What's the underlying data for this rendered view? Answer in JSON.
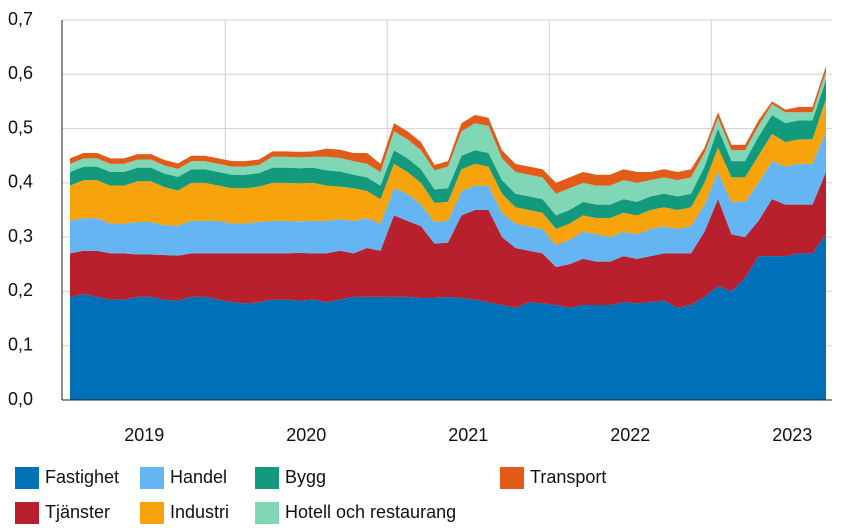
{
  "chart_data": {
    "type": "stacked-area",
    "categories": [
      null,
      null,
      null,
      null,
      null,
      null,
      "2019",
      null,
      null,
      null,
      null,
      null,
      null,
      null,
      null,
      null,
      null,
      null,
      "2020",
      null,
      null,
      null,
      null,
      null,
      null,
      null,
      null,
      null,
      null,
      null,
      "2021",
      null,
      null,
      null,
      null,
      null,
      null,
      null,
      null,
      null,
      null,
      null,
      "2022",
      null,
      null,
      null,
      null,
      null,
      null,
      null,
      null,
      null,
      null,
      null,
      "2023",
      null,
      null
    ],
    "ylim": [
      0,
      0.7
    ],
    "yticks": [
      {
        "value": 0,
        "label": "0,0"
      },
      {
        "value": 0.1,
        "label": "0,1"
      },
      {
        "value": 0.2,
        "label": "0,2"
      },
      {
        "value": 0.3,
        "label": "0,3"
      },
      {
        "value": 0.4,
        "label": "0,4"
      },
      {
        "value": 0.5,
        "label": "0,5"
      },
      {
        "value": 0.6,
        "label": "0,6"
      },
      {
        "value": 0.7,
        "label": "0,7"
      }
    ],
    "grid": true,
    "legend": "bottom",
    "series": [
      {
        "name": "Fastighet",
        "color": "#0071b9",
        "values": [
          0.19,
          0.195,
          0.19,
          0.185,
          0.185,
          0.19,
          0.19,
          0.185,
          0.183,
          0.19,
          0.19,
          0.185,
          0.18,
          0.178,
          0.18,
          0.185,
          0.185,
          0.183,
          0.185,
          0.18,
          0.185,
          0.19,
          0.19,
          0.19,
          0.19,
          0.19,
          0.188,
          0.188,
          0.19,
          0.188,
          0.185,
          0.18,
          0.175,
          0.17,
          0.18,
          0.178,
          0.175,
          0.17,
          0.175,
          0.175,
          0.175,
          0.18,
          0.178,
          0.18,
          0.183,
          0.17,
          0.175,
          0.19,
          0.21,
          0.2,
          0.225,
          0.265,
          0.265,
          0.265,
          0.27,
          0.27,
          0.305
        ]
      },
      {
        "name": "Tjänster",
        "color": "#b8202e",
        "values": [
          0.08,
          0.08,
          0.085,
          0.085,
          0.085,
          0.078,
          0.078,
          0.082,
          0.083,
          0.08,
          0.08,
          0.085,
          0.09,
          0.092,
          0.09,
          0.085,
          0.085,
          0.088,
          0.085,
          0.09,
          0.09,
          0.08,
          0.09,
          0.085,
          0.15,
          0.14,
          0.132,
          0.1,
          0.1,
          0.152,
          0.165,
          0.17,
          0.125,
          0.11,
          0.095,
          0.092,
          0.07,
          0.08,
          0.085,
          0.08,
          0.08,
          0.085,
          0.082,
          0.085,
          0.087,
          0.1,
          0.095,
          0.12,
          0.16,
          0.105,
          0.075,
          0.065,
          0.105,
          0.095,
          0.09,
          0.09,
          0.115
        ]
      },
      {
        "name": "Handel",
        "color": "#64b5f2",
        "values": [
          0.06,
          0.06,
          0.06,
          0.055,
          0.055,
          0.06,
          0.06,
          0.055,
          0.055,
          0.06,
          0.06,
          0.06,
          0.055,
          0.055,
          0.058,
          0.06,
          0.06,
          0.058,
          0.06,
          0.06,
          0.058,
          0.06,
          0.055,
          0.05,
          0.05,
          0.05,
          0.04,
          0.04,
          0.04,
          0.045,
          0.045,
          0.045,
          0.045,
          0.045,
          0.045,
          0.045,
          0.04,
          0.045,
          0.05,
          0.05,
          0.045,
          0.045,
          0.045,
          0.05,
          0.05,
          0.045,
          0.05,
          0.05,
          0.05,
          0.06,
          0.065,
          0.07,
          0.07,
          0.07,
          0.075,
          0.075,
          0.075
        ]
      },
      {
        "name": "Industri",
        "color": "#f7a30c",
        "values": [
          0.065,
          0.07,
          0.07,
          0.07,
          0.07,
          0.075,
          0.075,
          0.07,
          0.065,
          0.07,
          0.07,
          0.065,
          0.065,
          0.065,
          0.065,
          0.07,
          0.07,
          0.07,
          0.07,
          0.065,
          0.06,
          0.06,
          0.05,
          0.045,
          0.045,
          0.04,
          0.04,
          0.035,
          0.035,
          0.04,
          0.04,
          0.035,
          0.035,
          0.03,
          0.03,
          0.03,
          0.03,
          0.03,
          0.03,
          0.03,
          0.035,
          0.035,
          0.035,
          0.035,
          0.035,
          0.035,
          0.035,
          0.04,
          0.045,
          0.045,
          0.045,
          0.05,
          0.05,
          0.045,
          0.045,
          0.045,
          0.06
        ]
      },
      {
        "name": "Bygg",
        "color": "#139a7c",
        "values": [
          0.025,
          0.025,
          0.025,
          0.025,
          0.025,
          0.025,
          0.025,
          0.025,
          0.025,
          0.025,
          0.025,
          0.025,
          0.025,
          0.025,
          0.025,
          0.028,
          0.028,
          0.028,
          0.028,
          0.028,
          0.028,
          0.025,
          0.025,
          0.025,
          0.025,
          0.025,
          0.025,
          0.025,
          0.025,
          0.025,
          0.025,
          0.025,
          0.025,
          0.025,
          0.025,
          0.025,
          0.025,
          0.025,
          0.025,
          0.025,
          0.025,
          0.025,
          0.025,
          0.025,
          0.025,
          0.025,
          0.025,
          0.03,
          0.035,
          0.03,
          0.03,
          0.035,
          0.035,
          0.035,
          0.035,
          0.035,
          0.035
        ]
      },
      {
        "name": "Hotell och restaurang",
        "color": "#7fd7b6",
        "values": [
          0.015,
          0.015,
          0.015,
          0.015,
          0.015,
          0.015,
          0.015,
          0.015,
          0.015,
          0.015,
          0.015,
          0.015,
          0.015,
          0.015,
          0.015,
          0.02,
          0.02,
          0.02,
          0.02,
          0.025,
          0.025,
          0.025,
          0.025,
          0.025,
          0.035,
          0.035,
          0.035,
          0.035,
          0.04,
          0.045,
          0.05,
          0.05,
          0.04,
          0.04,
          0.04,
          0.04,
          0.04,
          0.04,
          0.035,
          0.035,
          0.035,
          0.035,
          0.035,
          0.03,
          0.03,
          0.03,
          0.03,
          0.025,
          0.02,
          0.02,
          0.02,
          0.02,
          0.02,
          0.02,
          0.015,
          0.015,
          0.015
        ]
      },
      {
        "name": "Transport",
        "color": "#e35b18",
        "values": [
          0.01,
          0.01,
          0.01,
          0.01,
          0.01,
          0.01,
          0.01,
          0.01,
          0.01,
          0.01,
          0.01,
          0.01,
          0.01,
          0.01,
          0.01,
          0.01,
          0.01,
          0.01,
          0.01,
          0.015,
          0.015,
          0.015,
          0.02,
          0.015,
          0.015,
          0.015,
          0.015,
          0.01,
          0.01,
          0.015,
          0.015,
          0.015,
          0.015,
          0.015,
          0.015,
          0.015,
          0.02,
          0.02,
          0.02,
          0.02,
          0.02,
          0.02,
          0.02,
          0.015,
          0.015,
          0.015,
          0.015,
          0.01,
          0.01,
          0.01,
          0.01,
          0.01,
          0.005,
          0.005,
          0.01,
          0.01,
          0.01
        ]
      }
    ]
  }
}
